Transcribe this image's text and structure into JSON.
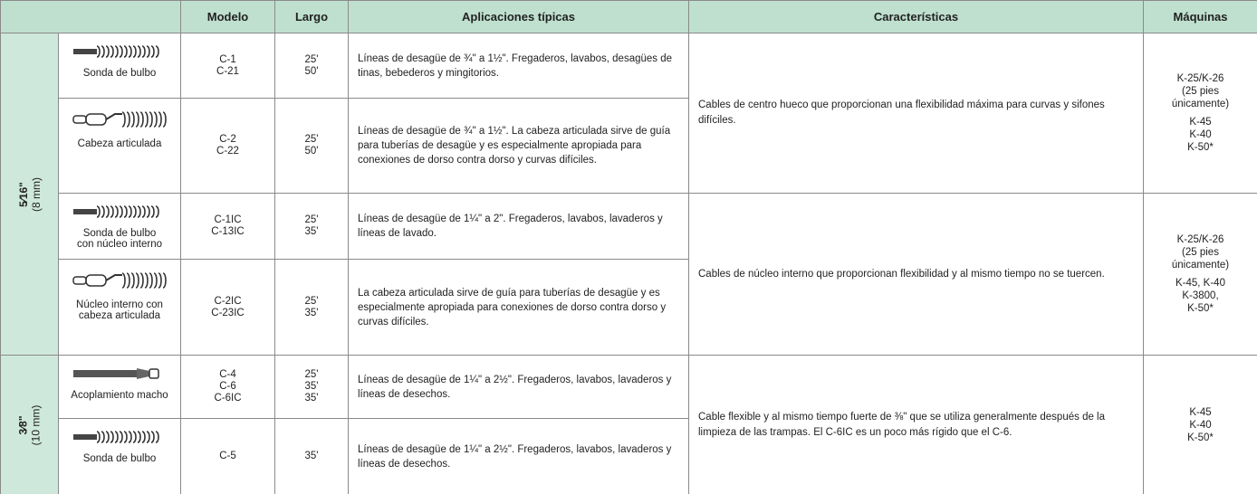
{
  "table": {
    "columns": [
      "Modelo",
      "Largo",
      "Aplicaciones típicas",
      "Características",
      "Máquinas"
    ],
    "groups": [
      {
        "size": {
          "fraction": "5⁄16\"",
          "mm": "(8 mm)"
        },
        "blocks": [
          {
            "rows": [
              {
                "tool": [
                  "Sonda de bulbo"
                ],
                "models": [
                  "C-1",
                  "C-21"
                ],
                "lengths": [
                  "25'",
                  "50'"
                ],
                "applications": "Líneas de desagüe de ¾\" a 1½\". Fregaderos, lavabos, desagües de tinas, bebederos y mingitorios."
              },
              {
                "tool": [
                  "Cabeza articulada"
                ],
                "models": [
                  "C-2",
                  "C-22"
                ],
                "lengths": [
                  "25'",
                  "50'"
                ],
                "applications": "Líneas de desagüe de ¾\" a 1½\". La cabeza articulada sirve de guía para tuberías de desagüe y es especialmente apropiada para conexiones de dorso contra dorso y curvas difíciles."
              }
            ],
            "features": "Cables de centro hueco que proporcionan una flexibilidad máxima para curvas y sifones difíciles.",
            "machines": [
              [
                "K-25/K-26",
                "(25 pies",
                "únicamente)"
              ],
              [
                "K-45",
                "K-40",
                "K-50*"
              ]
            ]
          },
          {
            "rows": [
              {
                "tool": [
                  "Sonda de bulbo",
                  "con núcleo interno"
                ],
                "models": [
                  "C-1IC",
                  "C-13IC"
                ],
                "lengths": [
                  "25'",
                  "35'"
                ],
                "applications": "Líneas de desagüe de 1¼\" a 2\". Fregaderos, lavabos, lavaderos y líneas de lavado."
              },
              {
                "tool": [
                  "Núcleo interno con",
                  "cabeza articulada"
                ],
                "models": [
                  "C-2IC",
                  "C-23IC"
                ],
                "lengths": [
                  "25'",
                  "35'"
                ],
                "applications": "La cabeza articulada sirve de guía para tuberías de desagüe y es especialmente apropiada para conexiones de dorso contra dorso y curvas difíciles."
              }
            ],
            "features": "Cables de núcleo interno que proporcionan flexibilidad y al mismo tiempo no se tuercen.",
            "machines": [
              [
                "K-25/K-26",
                "(25 pies",
                "únicamente)"
              ],
              [
                "K-45, K-40",
                "K-3800,",
                "K-50*"
              ]
            ]
          }
        ]
      },
      {
        "size": {
          "fraction": "3⁄8\"",
          "mm": "(10 mm)"
        },
        "blocks": [
          {
            "rows": [
              {
                "tool": [
                  "Acoplamiento macho"
                ],
                "models": [
                  "C-4",
                  "C-6",
                  "C-6IC"
                ],
                "lengths": [
                  "25'",
                  "35'",
                  "35'"
                ],
                "applications": "Líneas de desagüe de 1¼\" a 2½\". Fregaderos, lavabos, lavaderos y líneas de desechos."
              },
              {
                "tool": [
                  "Sonda de bulbo"
                ],
                "models": [
                  "C-5"
                ],
                "lengths": [
                  "35'"
                ],
                "applications": "Líneas de desagüe de 1¼\" a 2½\". Fregaderos, lavabos, lavaderos y líneas de desechos."
              }
            ],
            "features": "Cable flexible y al mismo tiempo fuerte de ⅜\" que se utiliza generalmente después de la limpieza de las trampas. El C-6IC es un poco más rígido que el C-6.",
            "machines": [
              [
                "K-45",
                "K-40",
                "K-50*"
              ]
            ]
          }
        ]
      }
    ]
  }
}
